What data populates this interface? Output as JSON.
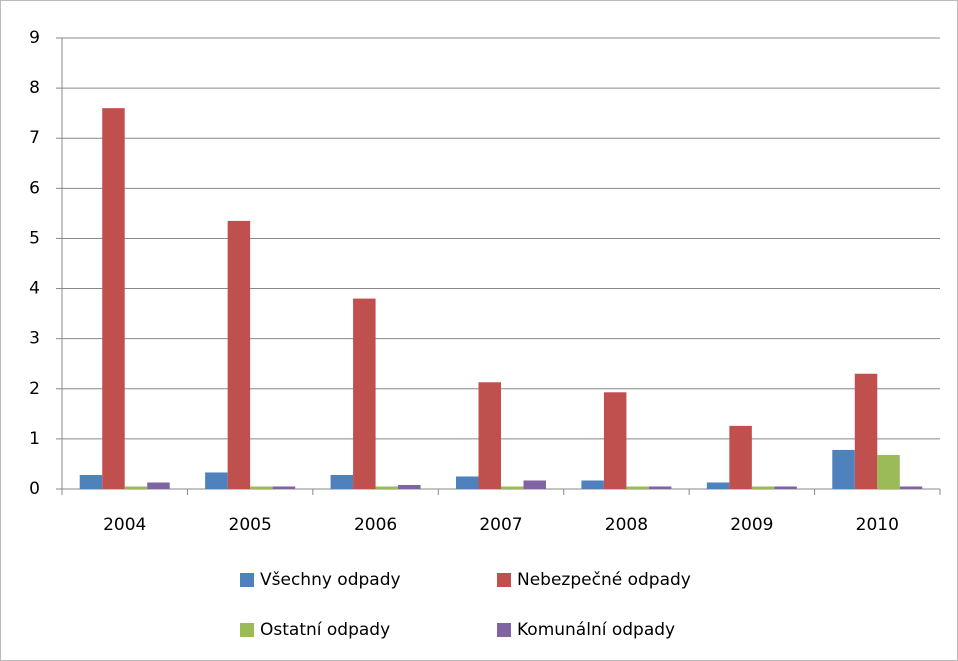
{
  "chart_data": {
    "type": "bar",
    "categories": [
      "2004",
      "2005",
      "2006",
      "2007",
      "2008",
      "2009",
      "2010"
    ],
    "series": [
      {
        "name": "Všechny odpady",
        "color": "#4f81bd",
        "values": [
          0.28,
          0.33,
          0.28,
          0.25,
          0.17,
          0.13,
          0.78
        ]
      },
      {
        "name": "Nebezpečné odpady",
        "color": "#c0504d",
        "values": [
          7.6,
          5.35,
          3.8,
          2.13,
          1.93,
          1.26,
          2.3
        ]
      },
      {
        "name": "Ostatní odpady",
        "color": "#9bbb59",
        "values": [
          0.05,
          0.05,
          0.05,
          0.05,
          0.05,
          0.05,
          0.68
        ]
      },
      {
        "name": "Komunální odpady",
        "color": "#8064a2",
        "values": [
          0.13,
          0.05,
          0.08,
          0.17,
          0.05,
          0.05,
          0.05
        ]
      }
    ],
    "ylim": [
      0,
      9
    ],
    "yticks": [
      0,
      1,
      2,
      3,
      4,
      5,
      6,
      7,
      8,
      9
    ],
    "grid": true,
    "legend": "bottom"
  }
}
